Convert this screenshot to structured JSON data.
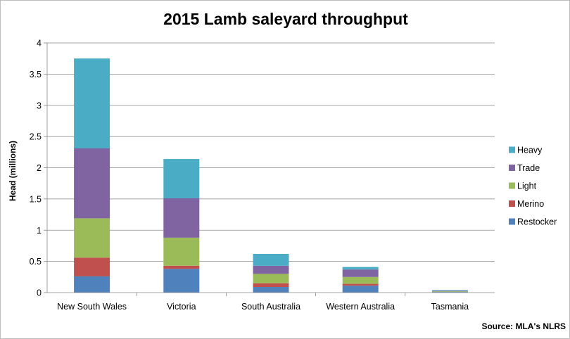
{
  "chart_data": {
    "type": "bar",
    "stacked": true,
    "title": "2015 Lamb saleyard throughput",
    "xlabel": "",
    "ylabel": "Head (millions)",
    "ylim": [
      0,
      4
    ],
    "yticks": [
      "0",
      "0.5",
      "1",
      "1.5",
      "2",
      "2.5",
      "3",
      "3.5",
      "4"
    ],
    "grid": true,
    "legend_position": "right",
    "categories": [
      "New South Wales",
      "Victoria",
      "South Australia",
      "Western Australia",
      "Tasmania"
    ],
    "series": [
      {
        "name": "Restocker",
        "color": "#4f81bd",
        "values": [
          0.26,
          0.38,
          0.09,
          0.11,
          0.01
        ]
      },
      {
        "name": "Merino",
        "color": "#c0504d",
        "values": [
          0.3,
          0.05,
          0.06,
          0.03,
          0.0
        ]
      },
      {
        "name": "Light",
        "color": "#9bbb59",
        "values": [
          0.63,
          0.45,
          0.15,
          0.11,
          0.01
        ]
      },
      {
        "name": "Trade",
        "color": "#8064a2",
        "values": [
          1.12,
          0.63,
          0.13,
          0.12,
          0.01
        ]
      },
      {
        "name": "Heavy",
        "color": "#4bacc6",
        "values": [
          1.44,
          0.63,
          0.19,
          0.04,
          0.01
        ]
      }
    ],
    "source": "Source: MLA's NLRS"
  }
}
